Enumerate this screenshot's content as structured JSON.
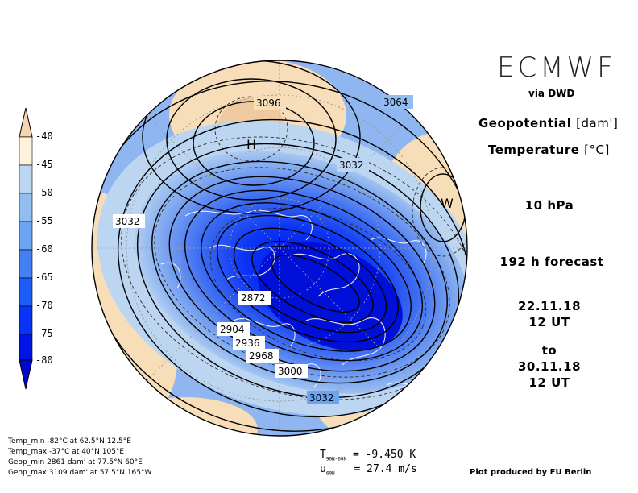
{
  "header": {
    "brand": "ECMWF",
    "via": "via DWD",
    "field1": "Geopotential",
    "field1_unit": "[dam']",
    "field2": "Temperature",
    "field2_unit": "[°C]",
    "level": "10 hPa",
    "forecast": "192 h forecast",
    "init_date": "22.11.18",
    "init_time": "12 UT",
    "to": "to",
    "valid_date": "30.11.18",
    "valid_time": "12 UT"
  },
  "colorbar": {
    "ticks": [
      "-40",
      "-45",
      "-50",
      "-55",
      "-60",
      "-65",
      "-70",
      "-75",
      "-80"
    ],
    "colors": [
      "#f5d6b0",
      "#fff2dc",
      "#bcd6f2",
      "#93bdf0",
      "#6ba4f2",
      "#4380f4",
      "#1f5ef6",
      "#0a34f4",
      "#0014e6",
      "#0008d0"
    ]
  },
  "map": {
    "contour_labels": [
      "3096",
      "3064",
      "3032",
      "3032",
      "2872",
      "2904",
      "2936",
      "2968",
      "3000",
      "3032"
    ],
    "high_label": "H",
    "warm_label": "W",
    "colors": {
      "ocean_deep": "#0a26ee",
      "ocean_mid": "#3f6ff2",
      "ocean_light": "#8fb6f0",
      "warm": "#f7deb8",
      "land_line": "#ffffff",
      "contour": "#000000"
    }
  },
  "stats": {
    "temp_min": "Temp_min  -82°C at 62.5°N 12.5°E",
    "temp_max": "Temp_max  -37°C at 40°N 105°E",
    "geop_min": "Geop_min  2861 dam' at 77.5°N 60°E",
    "geop_max": "Geop_max  3109 dam' at 57.5°N 165°W"
  },
  "indices": {
    "t_label": "T",
    "t_sub": "90N-60N",
    "t_value": "= -9.450 K",
    "u_label": "u",
    "u_sub": "60N",
    "u_value": "= 27.4 m/s"
  },
  "footer": {
    "credit": "Plot produced by FU Berlin"
  }
}
